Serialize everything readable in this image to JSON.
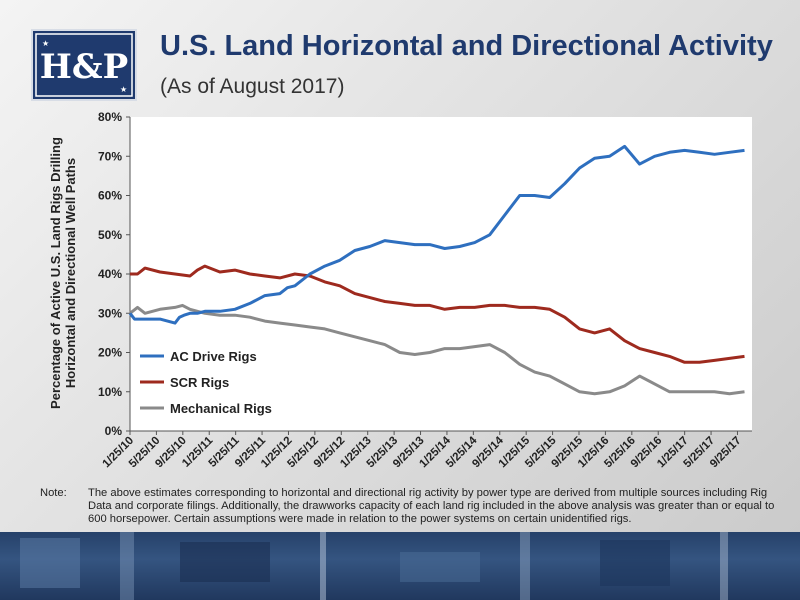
{
  "header": {
    "title": "U.S. Land Horizontal and Directional Activity",
    "subtitle": "(As of August 2017)",
    "logo_text": "H&P"
  },
  "colors": {
    "ac": "#2e6fbf",
    "scr": "#9e2a1e",
    "mech": "#8a8a8a",
    "title": "#1f3a6e"
  },
  "chart_data": {
    "type": "line",
    "title": "",
    "ylabel_lines": [
      "Percentage of Active U.S. Land Rigs Drilling",
      "Horizontal and Directional Well Paths"
    ],
    "xlabel": "",
    "ylim": [
      0,
      80
    ],
    "y_ticks": [
      "0%",
      "10%",
      "20%",
      "30%",
      "40%",
      "50%",
      "60%",
      "70%",
      "80%"
    ],
    "x_tick_labels": [
      "1/25/10",
      "5/25/10",
      "9/25/10",
      "1/25/11",
      "5/25/11",
      "9/25/11",
      "1/25/12",
      "5/25/12",
      "9/25/12",
      "1/25/13",
      "5/25/13",
      "9/25/13",
      "1/25/14",
      "5/25/14",
      "9/25/14",
      "1/25/15",
      "5/25/15",
      "9/25/15",
      "1/25/16",
      "5/25/16",
      "9/25/16",
      "1/25/17",
      "5/25/17",
      "9/25/17"
    ],
    "grid": false,
    "legend_position": "bottom-left",
    "series": [
      {
        "name": "AC Drive Rigs",
        "color": "#2e6fbf",
        "points": [
          [
            0,
            30
          ],
          [
            0.3,
            28.5
          ],
          [
            1,
            28.5
          ],
          [
            1.5,
            28.5
          ],
          [
            2,
            28.5
          ],
          [
            2.5,
            28
          ],
          [
            3,
            27.5
          ],
          [
            3.3,
            29
          ],
          [
            3.6,
            29.5
          ],
          [
            4,
            30
          ],
          [
            4.5,
            30
          ],
          [
            5,
            30.5
          ],
          [
            6,
            30.5
          ],
          [
            7,
            31
          ],
          [
            8,
            32.5
          ],
          [
            9,
            34.5
          ],
          [
            10,
            35
          ],
          [
            10.5,
            36.5
          ],
          [
            11,
            37
          ],
          [
            12,
            40
          ],
          [
            13,
            42
          ],
          [
            14,
            43.5
          ],
          [
            15,
            46
          ],
          [
            16,
            47
          ],
          [
            17,
            48.5
          ],
          [
            18,
            48
          ],
          [
            19,
            47.5
          ],
          [
            20,
            47.5
          ],
          [
            21,
            46.5
          ],
          [
            22,
            47
          ],
          [
            23,
            48
          ],
          [
            24,
            50
          ],
          [
            25,
            55
          ],
          [
            26,
            60
          ],
          [
            27,
            60
          ],
          [
            28,
            59.5
          ],
          [
            29,
            63
          ],
          [
            30,
            67
          ],
          [
            31,
            69.5
          ],
          [
            32,
            70
          ],
          [
            33,
            72.5
          ],
          [
            34,
            68
          ],
          [
            35,
            70
          ],
          [
            36,
            71
          ],
          [
            37,
            71.5
          ],
          [
            38,
            71
          ],
          [
            39,
            70.5
          ],
          [
            40,
            71
          ],
          [
            41,
            71.5
          ]
        ]
      },
      {
        "name": "SCR Rigs",
        "color": "#9e2a1e",
        "points": [
          [
            0,
            40
          ],
          [
            0.5,
            40
          ],
          [
            1,
            41.5
          ],
          [
            2,
            40.5
          ],
          [
            3,
            40
          ],
          [
            4,
            39.5
          ],
          [
            4.5,
            41
          ],
          [
            5,
            42
          ],
          [
            6,
            40.5
          ],
          [
            7,
            41
          ],
          [
            8,
            40
          ],
          [
            9,
            39.5
          ],
          [
            10,
            39
          ],
          [
            11,
            40
          ],
          [
            12,
            39.5
          ],
          [
            13,
            38
          ],
          [
            14,
            37
          ],
          [
            15,
            35
          ],
          [
            16,
            34
          ],
          [
            17,
            33
          ],
          [
            18,
            32.5
          ],
          [
            19,
            32
          ],
          [
            20,
            32
          ],
          [
            21,
            31
          ],
          [
            22,
            31.5
          ],
          [
            23,
            31.5
          ],
          [
            24,
            32
          ],
          [
            25,
            32
          ],
          [
            26,
            31.5
          ],
          [
            27,
            31.5
          ],
          [
            28,
            31
          ],
          [
            29,
            29
          ],
          [
            30,
            26
          ],
          [
            31,
            25
          ],
          [
            32,
            26
          ],
          [
            33,
            23
          ],
          [
            34,
            21
          ],
          [
            35,
            20
          ],
          [
            36,
            19
          ],
          [
            37,
            17.5
          ],
          [
            38,
            17.5
          ],
          [
            39,
            18
          ],
          [
            40,
            18.5
          ],
          [
            41,
            19
          ]
        ]
      },
      {
        "name": "Mechanical Rigs",
        "color": "#8a8a8a",
        "points": [
          [
            0,
            30
          ],
          [
            0.5,
            31.5
          ],
          [
            1,
            30
          ],
          [
            2,
            31
          ],
          [
            3,
            31.5
          ],
          [
            3.5,
            32
          ],
          [
            4,
            31
          ],
          [
            5,
            30
          ],
          [
            6,
            29.5
          ],
          [
            7,
            29.5
          ],
          [
            8,
            29
          ],
          [
            9,
            28
          ],
          [
            10,
            27.5
          ],
          [
            11,
            27
          ],
          [
            12,
            26.5
          ],
          [
            13,
            26
          ],
          [
            14,
            25
          ],
          [
            15,
            24
          ],
          [
            16,
            23
          ],
          [
            17,
            22
          ],
          [
            18,
            20
          ],
          [
            19,
            19.5
          ],
          [
            20,
            20
          ],
          [
            21,
            21
          ],
          [
            22,
            21
          ],
          [
            23,
            21.5
          ],
          [
            24,
            22
          ],
          [
            25,
            20
          ],
          [
            26,
            17
          ],
          [
            27,
            15
          ],
          [
            28,
            14
          ],
          [
            29,
            12
          ],
          [
            30,
            10
          ],
          [
            31,
            9.5
          ],
          [
            32,
            10
          ],
          [
            33,
            11.5
          ],
          [
            34,
            14
          ],
          [
            35,
            12
          ],
          [
            36,
            10
          ],
          [
            37,
            10
          ],
          [
            38,
            10
          ],
          [
            39,
            10
          ],
          [
            40,
            9.5
          ],
          [
            41,
            10
          ]
        ]
      }
    ]
  },
  "note": {
    "label": "Note:",
    "text": "The above estimates corresponding to horizontal and directional rig activity by power type are derived from multiple sources including Rig Data and corporate filings.  Additionally, the drawworks capacity of each land rig included in the above analysis was greater than or equal to 600 horsepower.  Certain assumptions were made in relation to the power systems on certain unidentified rigs."
  }
}
